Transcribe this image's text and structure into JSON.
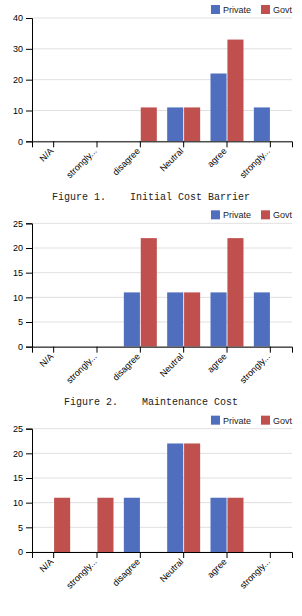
{
  "chart_data": [
    {
      "type": "bar",
      "title": "Figure 1.    Initial Cost Barrier",
      "categories": [
        "N/A",
        "strongly...",
        "disagree",
        "Neutral",
        "agree",
        "strongly..."
      ],
      "series": [
        {
          "name": "Private",
          "color": "#4F6EBD",
          "values": [
            0,
            0,
            0,
            11,
            22,
            11
          ]
        },
        {
          "name": "Govt",
          "color": "#C0504D",
          "values": [
            0,
            0,
            11,
            11,
            33,
            0
          ]
        }
      ],
      "ylim": [
        0,
        40
      ],
      "yticks": [
        0,
        10,
        20,
        30,
        40
      ],
      "grid": true,
      "legend": "upper right"
    },
    {
      "type": "bar",
      "title": "Figure 2.    Maintenance Cost",
      "categories": [
        "N/A",
        "strongly...",
        "disagree",
        "Neutral",
        "agree",
        "strongly..."
      ],
      "series": [
        {
          "name": "Private",
          "color": "#4F6EBD",
          "values": [
            0,
            0,
            11,
            11,
            11,
            11
          ]
        },
        {
          "name": "Govt",
          "color": "#C0504D",
          "values": [
            0,
            0,
            22,
            11,
            22,
            0
          ]
        }
      ],
      "ylim": [
        0,
        25
      ],
      "yticks": [
        0,
        5,
        10,
        15,
        20,
        25
      ],
      "grid": true,
      "legend": "upper right"
    },
    {
      "type": "bar",
      "categories": [
        "N/A",
        "strongly...",
        "disagree",
        "Neutral",
        "agree",
        "strongly..."
      ],
      "series": [
        {
          "name": "Private",
          "color": "#4F6EBD",
          "values": [
            0,
            0,
            11,
            22,
            11,
            0
          ]
        },
        {
          "name": "Govt",
          "color": "#C0504D",
          "values": [
            11,
            11,
            0,
            22,
            11,
            0
          ]
        }
      ],
      "ylim": [
        0,
        25
      ],
      "yticks": [
        0,
        5,
        10,
        15,
        20,
        25
      ],
      "grid": true,
      "legend": "upper right"
    }
  ]
}
